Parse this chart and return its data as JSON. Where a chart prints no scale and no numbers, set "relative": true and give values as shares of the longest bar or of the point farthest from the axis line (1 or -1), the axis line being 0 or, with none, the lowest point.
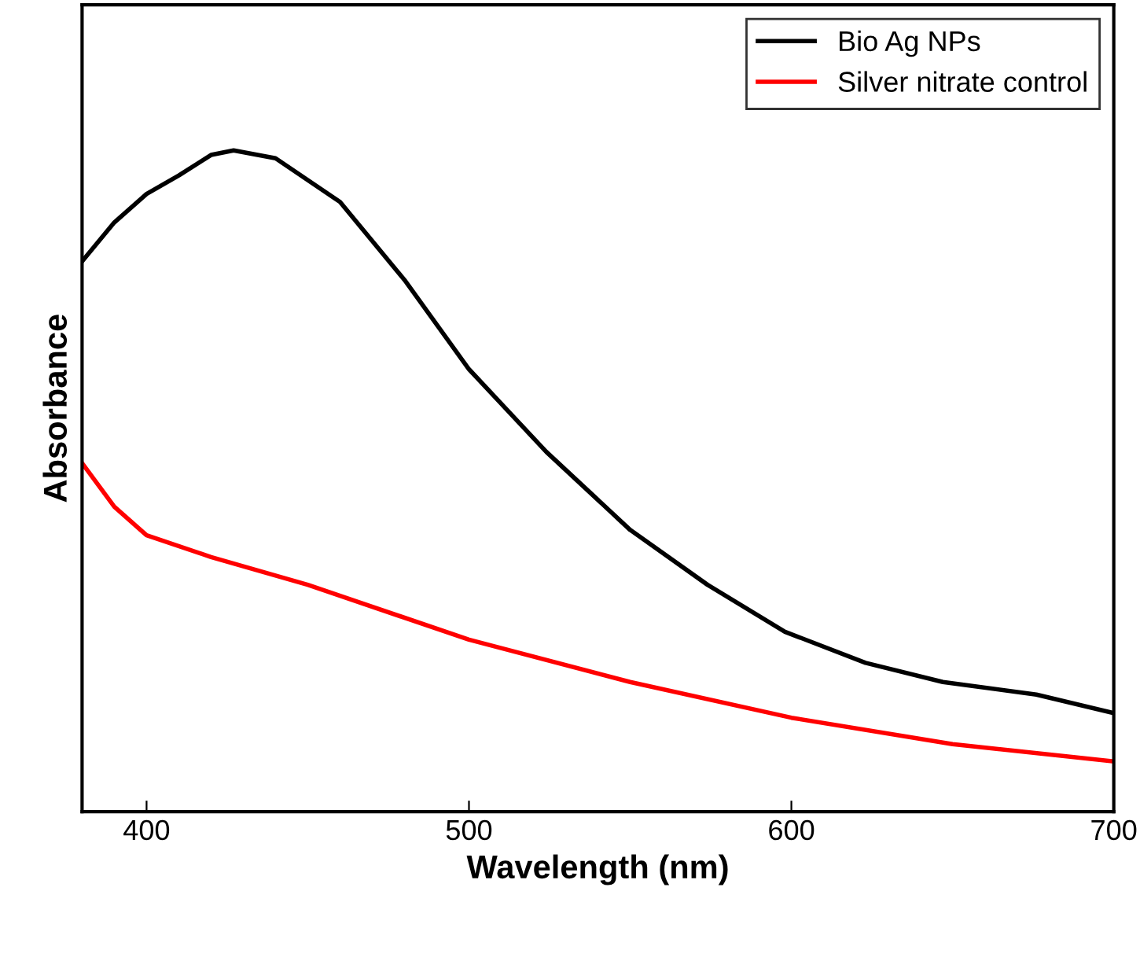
{
  "chart_data": {
    "type": "line",
    "xlabel": "Wavelength (nm)",
    "ylabel": "Absorbance",
    "relative": true,
    "xlim": [
      380,
      700
    ],
    "xticks": [
      400,
      500,
      600,
      700
    ],
    "grid": false,
    "legend": "top right",
    "marker": "none",
    "line_style": "solid",
    "series": [
      {
        "name": "Bio Ag NPs",
        "color": "#000000",
        "x": [
          380,
          390,
          400,
          410,
          420,
          427,
          440,
          460,
          480,
          500,
          524,
          550,
          574,
          598,
          623,
          647,
          676,
          700
        ],
        "values": [
          0.832,
          0.891,
          0.934,
          0.962,
          0.993,
          1.0,
          0.988,
          0.922,
          0.804,
          0.669,
          0.544,
          0.426,
          0.343,
          0.272,
          0.225,
          0.196,
          0.177,
          0.149
        ]
      },
      {
        "name": "Silver nitrate control",
        "color": "#ff0000",
        "x": [
          380,
          390,
          400,
          420,
          450,
          500,
          550,
          600,
          650,
          700
        ],
        "values": [
          0.527,
          0.461,
          0.418,
          0.385,
          0.343,
          0.26,
          0.196,
          0.142,
          0.102,
          0.076
        ]
      }
    ]
  }
}
